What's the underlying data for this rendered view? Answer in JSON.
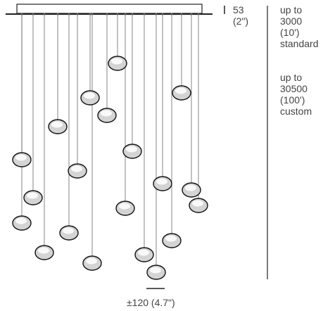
{
  "canopy_height": {
    "value": "53",
    "imperial": "(2\")"
  },
  "drop_standard": {
    "line1": "up to",
    "value": "3000",
    "imperial": "(10')",
    "note": "standard"
  },
  "drop_custom": {
    "line1": "up to",
    "value": "30500",
    "imperial": "(100')",
    "note": "custom"
  },
  "pendant_width": "±120 (4.7\")",
  "colors": {
    "line": "#222222",
    "pendant_fill": "#d4d4d4",
    "pendant_highlight": "#ffffff"
  }
}
